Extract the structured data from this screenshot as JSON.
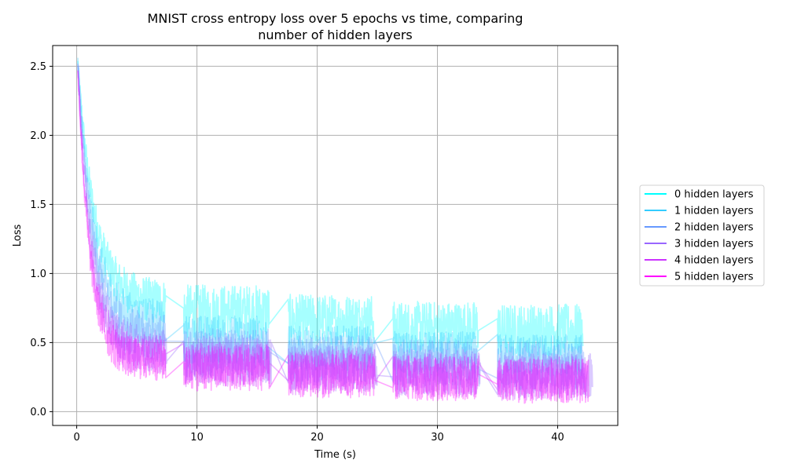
{
  "chart_data": {
    "type": "line",
    "title_line1": "MNIST cross entropy loss over 5 epochs vs time, comparing",
    "title_line2": "number of hidden layers",
    "xlabel": "Time (s)",
    "ylabel": "Loss",
    "xlim": [
      -2,
      45
    ],
    "ylim": [
      -0.1,
      2.65
    ],
    "xticks": [
      0,
      10,
      20,
      30,
      40
    ],
    "yticks": [
      0.0,
      0.5,
      1.0,
      1.5,
      2.0,
      2.5
    ],
    "xtick_labels": [
      "0",
      "10",
      "20",
      "30",
      "40"
    ],
    "ytick_labels": [
      "0.0",
      "0.5",
      "1.0",
      "1.5",
      "2.0",
      "2.5"
    ],
    "grid": true,
    "legend_position": "center-right outside",
    "series": [
      {
        "name": "0 hidden layers",
        "color": "#00ffff",
        "epochs": [
          [
            0.1,
            7.4
          ],
          [
            8.9,
            16.0
          ],
          [
            17.6,
            24.7
          ],
          [
            26.3,
            33.4
          ],
          [
            35.0,
            42.1
          ]
        ],
        "loss_start": 2.52,
        "epoch_band": [
          [
            0.62,
            0.95
          ],
          [
            0.52,
            0.92
          ],
          [
            0.48,
            0.85
          ],
          [
            0.42,
            0.8
          ],
          [
            0.4,
            0.78
          ]
        ]
      },
      {
        "name": "1 hidden layers",
        "color": "#33ccff",
        "epochs": [
          [
            0.1,
            7.3
          ],
          [
            8.9,
            15.9
          ],
          [
            17.6,
            24.6
          ],
          [
            26.3,
            33.3
          ],
          [
            35.0,
            42.0
          ]
        ],
        "loss_start": 2.5,
        "epoch_band": [
          [
            0.45,
            0.8
          ],
          [
            0.35,
            0.7
          ],
          [
            0.3,
            0.62
          ],
          [
            0.28,
            0.58
          ],
          [
            0.26,
            0.56
          ]
        ]
      },
      {
        "name": "2 hidden layers",
        "color": "#6699ff",
        "epochs": [
          [
            0.1,
            7.4
          ],
          [
            8.9,
            16.1
          ],
          [
            17.6,
            24.8
          ],
          [
            26.3,
            33.5
          ],
          [
            35.0,
            42.2
          ]
        ],
        "loss_start": 2.48,
        "epoch_band": [
          [
            0.35,
            0.7
          ],
          [
            0.25,
            0.6
          ],
          [
            0.2,
            0.55
          ],
          [
            0.18,
            0.52
          ],
          [
            0.16,
            0.5
          ]
        ]
      },
      {
        "name": "3 hidden layers",
        "color": "#9966ff",
        "epochs": [
          [
            0.1,
            7.5
          ],
          [
            8.9,
            16.2
          ],
          [
            17.6,
            25.0
          ],
          [
            26.3,
            33.6
          ],
          [
            35.0,
            42.9
          ]
        ],
        "loss_start": 2.54,
        "epoch_band": [
          [
            0.28,
            0.6
          ],
          [
            0.2,
            0.55
          ],
          [
            0.15,
            0.48
          ],
          [
            0.12,
            0.45
          ],
          [
            0.1,
            0.42
          ]
        ]
      },
      {
        "name": "4 hidden layers",
        "color": "#cc33ff",
        "epochs": [
          [
            0.1,
            7.4
          ],
          [
            8.9,
            16.1
          ],
          [
            17.6,
            24.9
          ],
          [
            26.3,
            33.5
          ],
          [
            35.0,
            42.5
          ]
        ],
        "loss_start": 2.5,
        "epoch_band": [
          [
            0.25,
            0.55
          ],
          [
            0.18,
            0.5
          ],
          [
            0.12,
            0.45
          ],
          [
            0.1,
            0.42
          ],
          [
            0.08,
            0.4
          ]
        ]
      },
      {
        "name": "5 hidden layers",
        "color": "#ff00ff",
        "epochs": [
          [
            0.1,
            7.4
          ],
          [
            8.9,
            16.0
          ],
          [
            17.6,
            24.8
          ],
          [
            26.3,
            33.4
          ],
          [
            35.0,
            42.6
          ]
        ],
        "loss_start": 2.48,
        "epoch_band": [
          [
            0.22,
            0.52
          ],
          [
            0.15,
            0.48
          ],
          [
            0.1,
            0.42
          ],
          [
            0.08,
            0.4
          ],
          [
            0.06,
            0.38
          ]
        ]
      }
    ]
  }
}
